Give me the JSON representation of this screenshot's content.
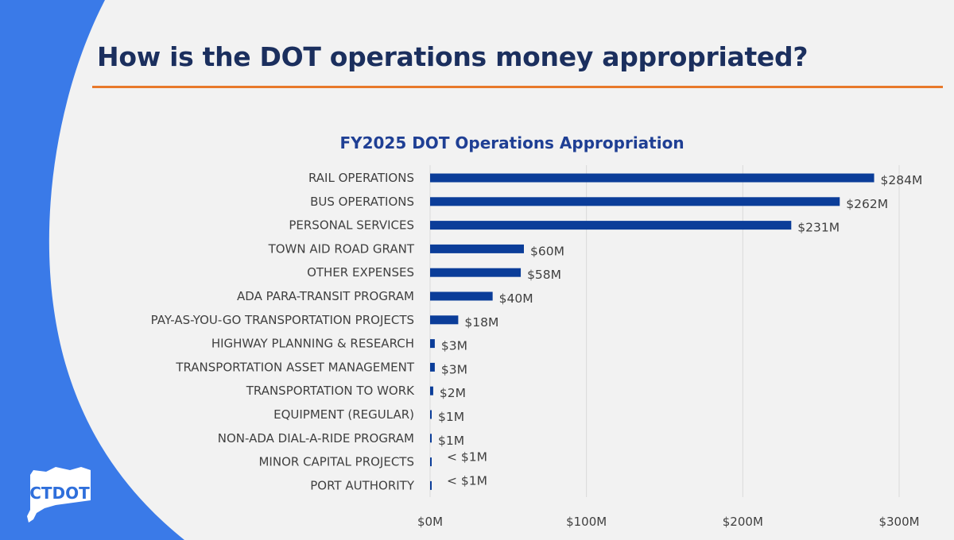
{
  "slide": {
    "title": "How is the DOT operations money appropriated?",
    "accent_color": "#e8792b",
    "brand_color": "#3a7ae8"
  },
  "logo": {
    "text": "CTDOT",
    "icon": "connecticut-state-outline-icon"
  },
  "chart_data": {
    "type": "bar",
    "orientation": "horizontal",
    "title": "FY2025 DOT Operations Appropriation",
    "xlabel": "",
    "ylabel": "",
    "xlim": [
      0,
      300
    ],
    "ticks": [
      0,
      100,
      200,
      300
    ],
    "tick_labels": [
      "$0M",
      "$100M",
      "$200M",
      "$300M"
    ],
    "grid": true,
    "bar_color": "#0b3d99",
    "categories": [
      "RAIL OPERATIONS",
      "BUS OPERATIONS",
      "PERSONAL SERVICES",
      "TOWN AID ROAD GRANT",
      "OTHER EXPENSES",
      "ADA PARA-TRANSIT PROGRAM",
      "PAY-AS-YOU-GO TRANSPORTATION PROJECTS",
      "HIGHWAY PLANNING & RESEARCH",
      "TRANSPORTATION ASSET MANAGEMENT",
      "TRANSPORTATION TO WORK",
      "EQUIPMENT (REGULAR)",
      "NON-ADA DIAL-A-RIDE PROGRAM",
      "MINOR CAPITAL PROJECTS",
      "PORT AUTHORITY"
    ],
    "values": [
      284,
      262,
      231,
      60,
      58,
      40,
      18,
      3,
      3,
      2,
      1,
      1,
      0.4,
      0.4
    ],
    "value_labels": [
      "$284M",
      "$262M",
      "$231M",
      "$60M",
      "$58M",
      "$40M",
      "$18M",
      "$3M",
      "$3M",
      "$2M",
      "$1M",
      "$1M",
      "< $1M",
      "< $1M"
    ]
  }
}
